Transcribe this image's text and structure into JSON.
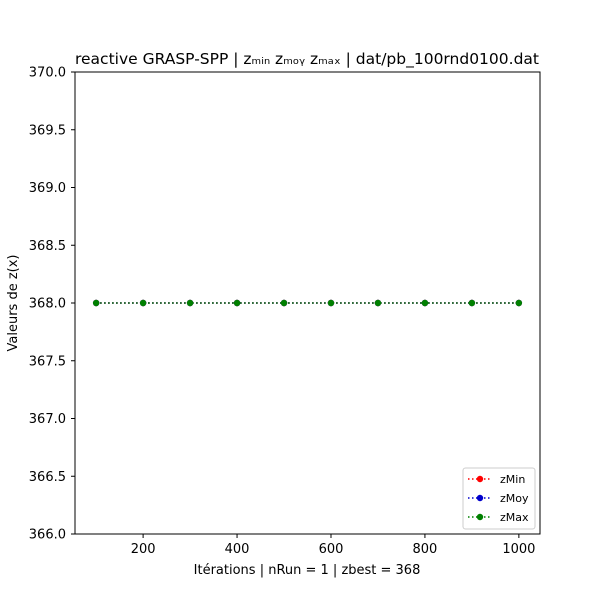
{
  "chart_data": {
    "type": "line",
    "title": "reactive GRASP-SPP | zₘᵢₙ  zₘₒᵧ  zₘₐₓ | dat/pb_100rnd0100.dat",
    "xlabel": "Itérations | nRun = 1 | zbest = 368",
    "ylabel": "Valeurs de z(x)",
    "xlim": [
      55,
      1045
    ],
    "ylim": [
      366.0,
      370.0
    ],
    "xticks": [
      200,
      400,
      600,
      800,
      1000
    ],
    "yticks": [
      366.0,
      366.5,
      367.0,
      367.5,
      368.0,
      368.5,
      369.0,
      369.5,
      370.0
    ],
    "ytick_labels": [
      "366.0",
      "366.5",
      "367.0",
      "367.5",
      "368.0",
      "368.5",
      "369.0",
      "369.5",
      "370.0"
    ],
    "x": [
      100,
      200,
      300,
      400,
      500,
      600,
      700,
      800,
      900,
      1000
    ],
    "series": [
      {
        "name": "zMin",
        "color": "#ff0000",
        "values": [
          368,
          368,
          368,
          368,
          368,
          368,
          368,
          368,
          368,
          368
        ]
      },
      {
        "name": "zMoy",
        "color": "#0000cc",
        "values": [
          368,
          368,
          368,
          368,
          368,
          368,
          368,
          368,
          368,
          368
        ]
      },
      {
        "name": "zMax",
        "color": "#008000",
        "values": [
          368,
          368,
          368,
          368,
          368,
          368,
          368,
          368,
          368,
          368
        ]
      }
    ],
    "legend": "lower-right",
    "grid": false
  }
}
